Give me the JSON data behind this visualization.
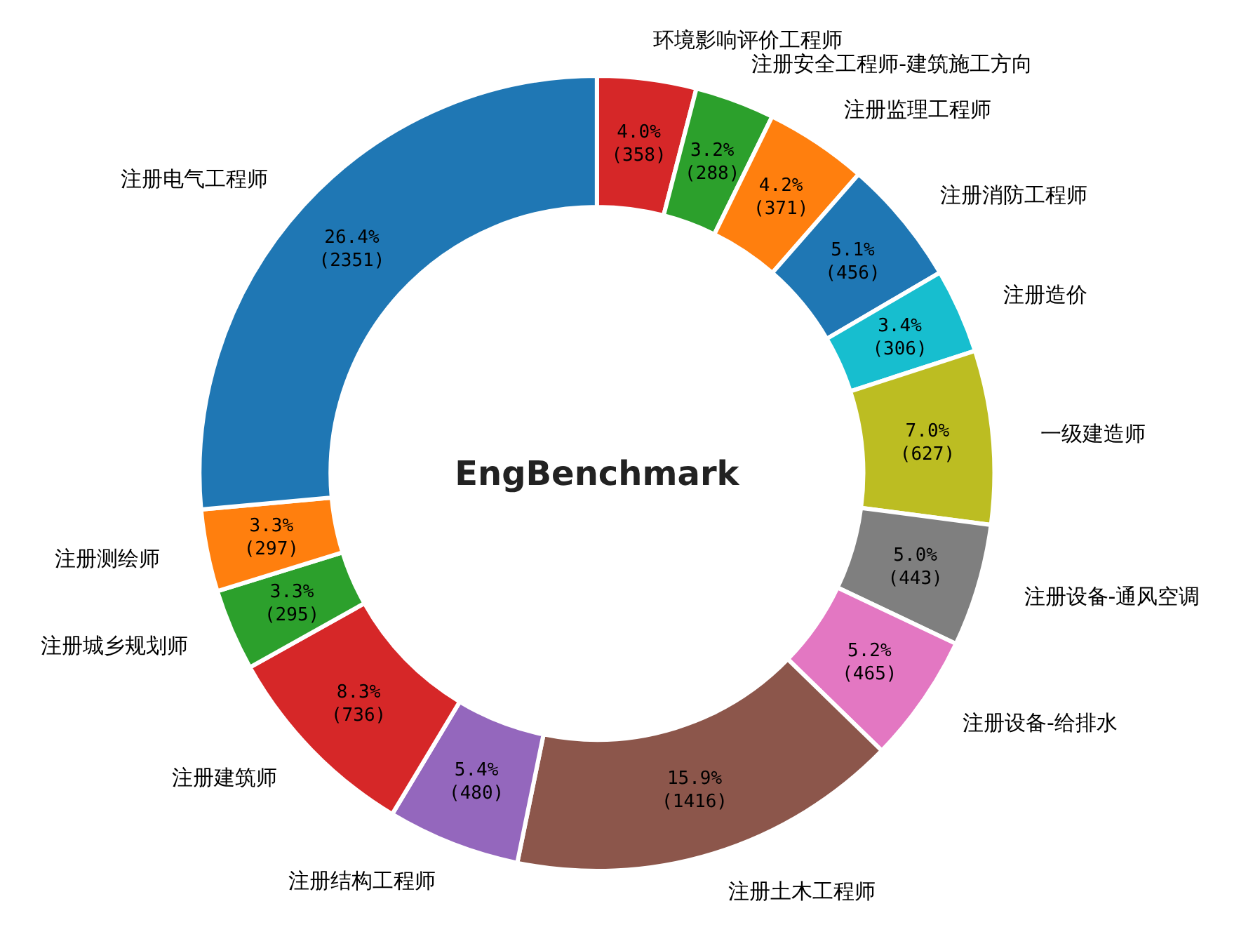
{
  "chart_data": {
    "type": "donut",
    "title": "EngBenchmark",
    "categories": [
      "环境影响评价工程师",
      "注册安全工程师-建筑施工方向",
      "注册监理工程师",
      "注册消防工程师",
      "注册造价",
      "一级建造师",
      "注册设备-通风空调",
      "注册设备-给排水",
      "注册土木工程师",
      "注册结构工程师",
      "注册建筑师",
      "注册城乡规划师",
      "注册测绘师",
      "注册电气工程师"
    ],
    "values": [
      358,
      288,
      371,
      456,
      306,
      627,
      443,
      465,
      1416,
      480,
      736,
      295,
      297,
      2351
    ],
    "value_labels": [
      "4.0%\n(358)",
      "3.2%\n(288)",
      "4.2%\n(371)",
      "5.1%\n(456)",
      "3.4%\n(306)",
      "7.0%\n(627)",
      "5.0%\n(443)",
      "5.2%\n(465)",
      "15.9%\n(1416)",
      "5.4%\n(480)",
      "8.3%\n(736)",
      "3.3%\n(295)",
      "3.3%\n(297)",
      "26.4%\n(2351)"
    ],
    "colors": [
      "#d62728",
      "#2ca02c",
      "#ff7f0e",
      "#1f77b4",
      "#17becf",
      "#bcbd22",
      "#7f7f7f",
      "#e377c2",
      "#8c564b",
      "#9467bd",
      "#d62728",
      "#2ca02c",
      "#ff7f0e",
      "#1f77b4"
    ]
  }
}
